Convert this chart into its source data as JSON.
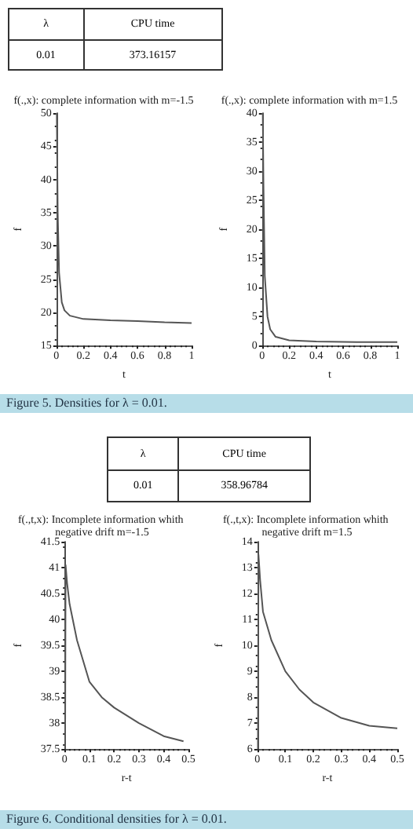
{
  "chart_data": [
    {
      "type": "other",
      "annotations": [
        "λ",
        "CPU time",
        "0.01",
        "373.16157"
      ]
    },
    {
      "type": "line",
      "title": "f(.,x): complete information with m=-1.5",
      "xlabel": "t",
      "ylabel": "f",
      "xlim": [
        0,
        1
      ],
      "xticks": [
        0,
        0.2,
        0.4,
        0.6,
        0.8,
        1
      ],
      "ylim": [
        15,
        50
      ],
      "yticks": [
        15,
        20,
        25,
        30,
        35,
        40,
        45,
        50
      ],
      "grid": false,
      "marker": "none",
      "annotations": [
        "Figure 5. Densities for λ = 0.01."
      ],
      "series": [
        {
          "color": "#555555",
          "x": [
            0.003,
            0.01,
            0.02,
            0.04,
            0.06,
            0.1,
            0.2,
            0.4,
            0.6,
            0.8,
            1
          ],
          "values": [
            50,
            35,
            26,
            21.5,
            20.3,
            19.5,
            19,
            18.8,
            18.7,
            18.5,
            18.4
          ]
        }
      ]
    },
    {
      "type": "line",
      "title": "f(.,x): complete information with m=1.5",
      "xlabel": "t",
      "ylabel": "f",
      "xlim": [
        0,
        1
      ],
      "xticks": [
        0,
        0.2,
        0.4,
        0.6,
        0.8,
        1
      ],
      "ylim": [
        0,
        40
      ],
      "yticks": [
        0,
        5,
        10,
        15,
        20,
        25,
        30,
        35,
        40
      ],
      "grid": false,
      "marker": "none",
      "series": [
        {
          "color": "#555555",
          "x": [
            0.005,
            0.01,
            0.02,
            0.04,
            0.06,
            0.1,
            0.2,
            0.4,
            0.7,
            1
          ],
          "values": [
            40,
            28,
            12,
            5,
            2.8,
            1.5,
            0.9,
            0.7,
            0.6,
            0.6
          ]
        }
      ]
    },
    {
      "type": "other",
      "annotations": [
        "λ",
        "CPU time",
        "0.01",
        "358.96784"
      ]
    },
    {
      "type": "line",
      "title": "f(.,t,x): Incomplete information whith negative drift m=-1.5",
      "xlabel": "r-t",
      "ylabel": "f",
      "xlim": [
        0,
        0.5
      ],
      "xticks": [
        0,
        0.1,
        0.2,
        0.3,
        0.4,
        0.5
      ],
      "ylim": [
        37.5,
        41.5
      ],
      "yticks": [
        37.5,
        38,
        38.5,
        39,
        39.5,
        40,
        40.5,
        41,
        41.5
      ],
      "grid": false,
      "marker": "none",
      "annotations": [
        "Figure 6. Conditional densities for λ = 0.01."
      ],
      "series": [
        {
          "color": "#555555",
          "x": [
            0.002,
            0.004,
            0.01,
            0.02,
            0.05,
            0.1,
            0.15,
            0.2,
            0.3,
            0.4,
            0.48
          ],
          "values": [
            37.5,
            41.05,
            40.7,
            40.3,
            39.6,
            38.8,
            38.5,
            38.3,
            38.0,
            37.75,
            37.65
          ]
        }
      ]
    },
    {
      "type": "line",
      "title": "f(.,t,x): Incomplete information whith negative drift m=1.5",
      "xlabel": "r-t",
      "ylabel": "f",
      "xlim": [
        0,
        0.5
      ],
      "xticks": [
        0,
        0.1,
        0.2,
        0.3,
        0.4,
        0.5
      ],
      "ylim": [
        6,
        14
      ],
      "yticks": [
        6,
        7,
        8,
        9,
        10,
        11,
        12,
        13,
        14
      ],
      "grid": false,
      "marker": "none",
      "series": [
        {
          "color": "#555555",
          "x": [
            0.002,
            0.004,
            0.01,
            0.02,
            0.05,
            0.1,
            0.15,
            0.2,
            0.3,
            0.4,
            0.5
          ],
          "values": [
            6,
            13.5,
            12.5,
            11.3,
            10.2,
            9,
            8.3,
            7.8,
            7.2,
            6.9,
            6.8
          ]
        }
      ]
    }
  ]
}
